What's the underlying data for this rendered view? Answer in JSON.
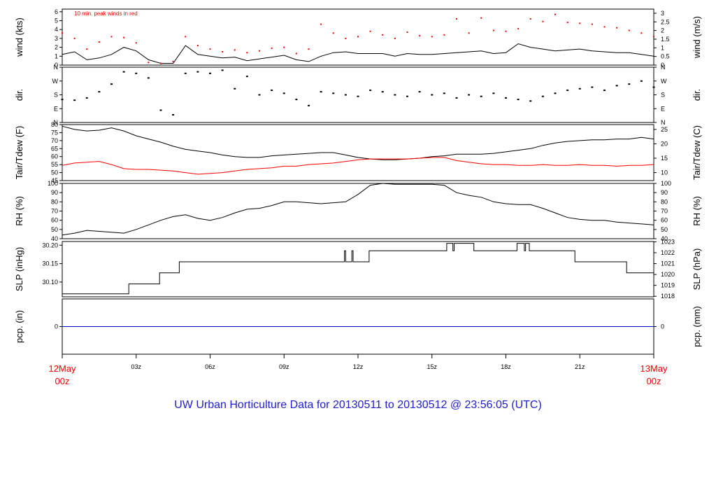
{
  "footer_title": "UW Urban Horticulture Data for 20130511  to  20130512 @ 23:56:05  (UTC)",
  "colors": {
    "primary": "#000000",
    "secondary": "#ff0000",
    "precip": "#0000cc",
    "footer": "#2020d0"
  },
  "x_axis": {
    "ticks": [
      "03z",
      "06z",
      "09z",
      "12z",
      "15z",
      "18z",
      "21z"
    ],
    "start_label": [
      "12May",
      "00z"
    ],
    "end_label": [
      "13May",
      "00z"
    ]
  },
  "chart_data": [
    {
      "type": "line",
      "panel": "wind",
      "ylabel": "wind (kts)",
      "y2label": "wind (m/s)",
      "annotation": "10 min. peak winds in red",
      "ylim": [
        0,
        6.3
      ],
      "yticks": [
        "0",
        "1",
        "2",
        "3",
        "4",
        "5",
        "6"
      ],
      "y2ticks": [
        "0",
        "0.5",
        "1",
        "1.5",
        "2",
        "2.5",
        "3"
      ],
      "x_hours": [
        0,
        0.5,
        1,
        1.5,
        2,
        2.5,
        3,
        3.5,
        4,
        4.5,
        5,
        5.5,
        6,
        6.5,
        7,
        7.5,
        8,
        8.5,
        9,
        9.5,
        10,
        10.5,
        11,
        11.5,
        12,
        12.5,
        13,
        13.5,
        14,
        14.5,
        15,
        15.5,
        16,
        16.5,
        17,
        17.5,
        18,
        18.5,
        19,
        19.5,
        20,
        20.5,
        21,
        21.5,
        22,
        22.5,
        23,
        23.5,
        24
      ],
      "series": [
        {
          "values": [
            1.2,
            1.5,
            0.6,
            0.8,
            1.2,
            2.0,
            1.6,
            0.6,
            0.2,
            0.2,
            2.2,
            1.2,
            1.0,
            0.8,
            0.9,
            0.5,
            0.7,
            0.9,
            1.1,
            0.6,
            0.4,
            1.0,
            1.4,
            1.5,
            1.3,
            1.3,
            1.3,
            1.0,
            1.3,
            1.2,
            1.2,
            1.3,
            1.4,
            1.5,
            1.6,
            1.3,
            1.4,
            2.4,
            2.0,
            1.8,
            1.6,
            1.7,
            1.8,
            1.6,
            1.5,
            1.4,
            1.4,
            1.2,
            1.0
          ]
        },
        {
          "values": [
            3.6,
            3.0,
            1.8,
            2.6,
            3.2,
            3.1,
            2.5,
            0.3,
            0.2,
            0.4,
            3.2,
            2.2,
            1.8,
            1.5,
            1.7,
            1.4,
            1.6,
            1.9,
            2.0,
            1.3,
            1.8,
            4.6,
            3.6,
            3.0,
            3.2,
            3.8,
            3.4,
            3.0,
            3.7,
            3.3,
            3.2,
            3.4,
            5.2,
            3.6,
            5.3,
            3.9,
            3.8,
            4.1,
            5.2,
            4.9,
            5.7,
            4.8,
            4.7,
            4.6,
            4.3,
            4.2,
            3.9,
            3.6,
            3.2
          ]
        }
      ]
    },
    {
      "type": "scatter",
      "panel": "dir",
      "ylabel": "dir.",
      "y2label": "dir.",
      "ylim": [
        0,
        360
      ],
      "yticks": [
        "N",
        "E",
        "S",
        "W",
        "N"
      ],
      "x_hours": [
        0,
        0.5,
        1,
        1.5,
        2,
        2.5,
        3,
        3.5,
        4,
        4.5,
        5,
        5.5,
        6,
        6.5,
        7,
        7.5,
        8,
        8.5,
        9,
        9.5,
        10,
        10.5,
        11,
        11.5,
        12,
        12.5,
        13,
        13.5,
        14,
        14.5,
        15,
        15.5,
        16,
        16.5,
        17,
        17.5,
        18,
        18.5,
        19,
        19.5,
        20,
        20.5,
        21,
        21.5,
        22,
        22.5,
        23,
        23.5,
        24
      ],
      "values": [
        150,
        145,
        160,
        200,
        250,
        330,
        320,
        290,
        80,
        50,
        320,
        330,
        320,
        340,
        220,
        300,
        180,
        210,
        190,
        150,
        110,
        200,
        190,
        180,
        170,
        210,
        200,
        180,
        170,
        200,
        180,
        190,
        160,
        180,
        170,
        190,
        160,
        150,
        140,
        170,
        190,
        210,
        220,
        230,
        210,
        240,
        250,
        270,
        230
      ]
    },
    {
      "type": "line",
      "panel": "temperature",
      "ylabel": "Tair/Tdew (F)",
      "y2label": "Tair/Tdew (C)",
      "ylim": [
        45,
        80
      ],
      "yticks": [
        "45",
        "50",
        "55",
        "60",
        "65",
        "70",
        "75",
        "80"
      ],
      "y2ticks": [
        "10",
        "15",
        "20",
        "25"
      ],
      "x_hours": [
        0,
        0.5,
        1,
        1.5,
        2,
        2.5,
        3,
        3.5,
        4,
        4.5,
        5,
        5.5,
        6,
        6.5,
        7,
        7.5,
        8,
        8.5,
        9,
        9.5,
        10,
        10.5,
        11,
        11.5,
        12,
        12.5,
        13,
        13.5,
        14,
        14.5,
        15,
        15.5,
        16,
        16.5,
        17,
        17.5,
        18,
        18.5,
        19,
        19.5,
        20,
        20.5,
        21,
        21.5,
        22,
        22.5,
        23,
        23.5,
        24
      ],
      "series": [
        {
          "values": [
            79,
            77,
            76,
            76.5,
            78,
            76,
            73,
            71,
            69,
            66.5,
            64.5,
            63.5,
            62.5,
            61,
            60,
            59.5,
            59.5,
            60.5,
            61,
            61.5,
            62,
            62.5,
            62.5,
            61,
            59.5,
            58.5,
            58,
            58,
            58.5,
            59,
            60,
            60.5,
            61.5,
            61.5,
            61.5,
            62,
            63,
            64,
            65,
            67,
            68.5,
            69.5,
            70,
            70.5,
            70.5,
            71,
            71,
            72,
            71
          ]
        },
        {
          "values": [
            54.5,
            56,
            56.5,
            57,
            55,
            52.5,
            52,
            52,
            51.5,
            51,
            50,
            49,
            49.5,
            50,
            51,
            52,
            52.5,
            53,
            54,
            54,
            55,
            55.5,
            56,
            57,
            58,
            58.5,
            58.5,
            58.5,
            58.5,
            59,
            59.5,
            59.5,
            57.5,
            56.5,
            55.5,
            55,
            55,
            54.5,
            54.5,
            55,
            54.5,
            54.5,
            55,
            54.5,
            54.5,
            54,
            54.5,
            54.5,
            55
          ]
        }
      ]
    },
    {
      "type": "line",
      "panel": "rh",
      "ylabel": "RH (%)",
      "y2label": "RH (%)",
      "ylim": [
        40,
        100
      ],
      "yticks": [
        "40",
        "50",
        "60",
        "70",
        "80",
        "90",
        "100"
      ],
      "x_hours": [
        0,
        0.5,
        1,
        1.5,
        2,
        2.5,
        3,
        3.5,
        4,
        4.5,
        5,
        5.5,
        6,
        6.5,
        7,
        7.5,
        8,
        8.5,
        9,
        9.5,
        10,
        10.5,
        11,
        11.5,
        12,
        12.5,
        13,
        13.5,
        14,
        14.5,
        15,
        15.5,
        16,
        16.5,
        17,
        17.5,
        18,
        18.5,
        19,
        19.5,
        20,
        20.5,
        21,
        21.5,
        22,
        22.5,
        23,
        23.5,
        24
      ],
      "values": [
        44,
        46,
        49,
        48,
        47,
        46,
        50,
        55,
        60,
        64,
        66,
        62,
        60,
        63,
        68,
        72,
        73,
        76,
        80,
        80,
        79,
        78,
        79,
        80,
        88,
        98,
        100,
        99,
        99,
        99,
        99,
        98,
        90,
        87,
        85,
        80,
        78,
        77,
        77,
        73,
        68,
        63,
        61,
        60,
        60,
        58,
        57,
        56,
        55
      ]
    },
    {
      "type": "line",
      "panel": "pressure",
      "ylabel": "SLP (inHg)",
      "y2label": "SLP (hPa)",
      "ylim": [
        30.06,
        30.21
      ],
      "yticks": [
        "30.10",
        "30.15",
        "30.20"
      ],
      "y2ticks": [
        "1018",
        "1019",
        "1020",
        "1021",
        "1022",
        "1023"
      ],
      "x_hours": [
        0,
        2.7,
        2.7,
        3.95,
        3.95,
        4.75,
        4.75,
        11.45,
        11.45,
        11.5,
        11.5,
        11.75,
        11.75,
        11.8,
        11.8,
        12.45,
        12.45,
        15.6,
        15.6,
        15.85,
        15.85,
        15.9,
        15.9,
        16.7,
        16.7,
        18.45,
        18.45,
        18.75,
        18.75,
        18.8,
        18.8,
        18.95,
        18.95,
        19.0,
        19.0,
        20.8,
        20.8,
        22.9,
        22.9,
        24
      ],
      "values": [
        30.068,
        30.068,
        30.095,
        30.095,
        30.125,
        30.125,
        30.155,
        30.155,
        30.185,
        30.185,
        30.155,
        30.155,
        30.185,
        30.185,
        30.155,
        30.155,
        30.185,
        30.185,
        30.205,
        30.205,
        30.185,
        30.185,
        30.205,
        30.205,
        30.185,
        30.185,
        30.205,
        30.205,
        30.185,
        30.185,
        30.205,
        30.205,
        30.185,
        30.185,
        30.185,
        30.185,
        30.155,
        30.155,
        30.125,
        30.125
      ]
    },
    {
      "type": "line",
      "panel": "precipitation",
      "ylabel": "pcp. (in)",
      "y2label": "pcp. (mm)",
      "ylim": [
        -1,
        1
      ],
      "yticks": [
        "0"
      ],
      "y2ticks": [
        "0"
      ],
      "x_hours": [
        0,
        24
      ],
      "values": [
        0,
        0
      ]
    }
  ]
}
